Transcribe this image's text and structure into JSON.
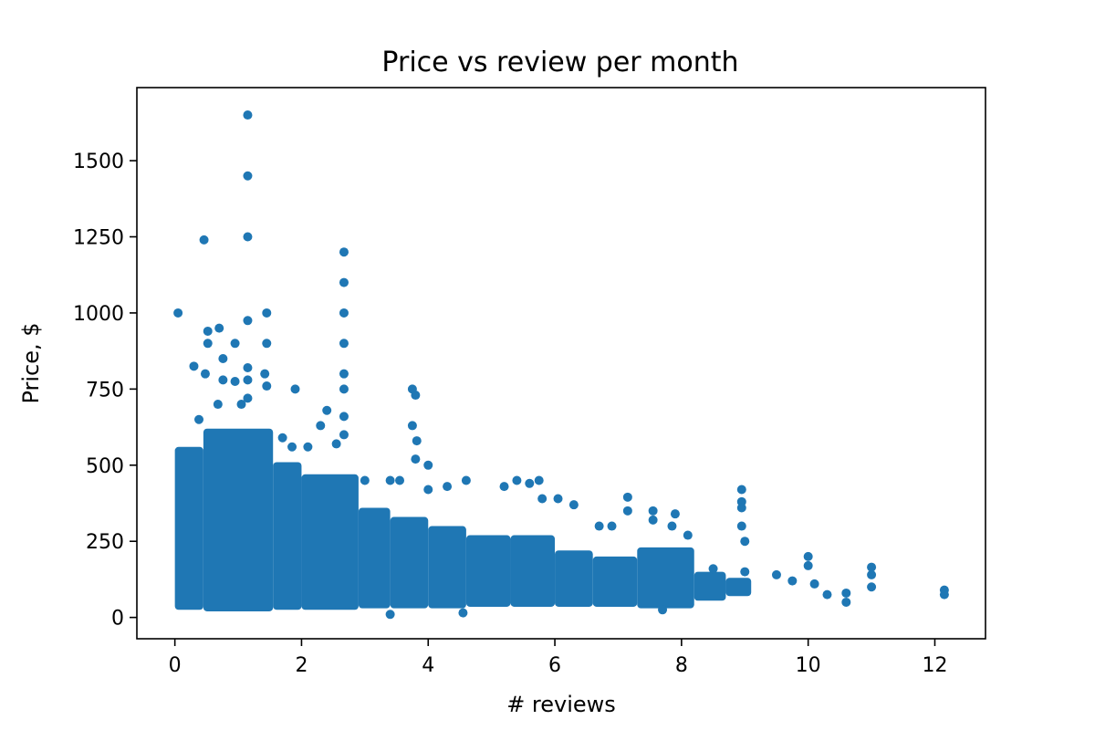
{
  "chart_data": {
    "type": "scatter",
    "title": "Price vs review per month",
    "xlabel": "# reviews",
    "ylabel": "Price, $",
    "xlim": [
      -0.6,
      12.8
    ],
    "ylim": [
      -70,
      1740
    ],
    "xticks": [
      0,
      2,
      4,
      6,
      8,
      10,
      12
    ],
    "yticks": [
      0,
      250,
      500,
      750,
      1000,
      1250,
      1500
    ],
    "grid": false,
    "legend": "none",
    "marker_color": "#1f77b4",
    "series": [
      {
        "points": [
          [
            0.05,
            1000
          ],
          [
            0.3,
            825
          ],
          [
            0.38,
            650
          ],
          [
            0.52,
            940
          ],
          [
            0.52,
            900
          ],
          [
            0.48,
            800
          ],
          [
            0.46,
            1240
          ],
          [
            0.7,
            950
          ],
          [
            0.68,
            700
          ],
          [
            0.76,
            850
          ],
          [
            0.76,
            780
          ],
          [
            0.95,
            900
          ],
          [
            0.95,
            775
          ],
          [
            1.05,
            700
          ],
          [
            1.15,
            1650
          ],
          [
            1.15,
            1450
          ],
          [
            1.15,
            1250
          ],
          [
            1.15,
            975
          ],
          [
            1.15,
            820
          ],
          [
            1.15,
            780
          ],
          [
            1.15,
            720
          ],
          [
            1.42,
            800
          ],
          [
            1.45,
            1000
          ],
          [
            1.45,
            900
          ],
          [
            1.45,
            760
          ],
          [
            1.9,
            750
          ],
          [
            1.7,
            590
          ],
          [
            1.85,
            560
          ],
          [
            2.1,
            560
          ],
          [
            2.3,
            630
          ],
          [
            2.4,
            680
          ],
          [
            2.55,
            570
          ],
          [
            2.67,
            1200
          ],
          [
            2.67,
            1100
          ],
          [
            2.67,
            1000
          ],
          [
            2.67,
            900
          ],
          [
            2.67,
            800
          ],
          [
            2.67,
            750
          ],
          [
            2.67,
            660
          ],
          [
            2.67,
            600
          ],
          [
            3.0,
            450
          ],
          [
            3.4,
            450
          ],
          [
            3.55,
            450
          ],
          [
            3.75,
            750
          ],
          [
            3.8,
            730
          ],
          [
            3.75,
            630
          ],
          [
            3.82,
            580
          ],
          [
            3.8,
            520
          ],
          [
            4.0,
            500
          ],
          [
            4.0,
            420
          ],
          [
            4.3,
            430
          ],
          [
            4.6,
            450
          ],
          [
            5.2,
            430
          ],
          [
            5.4,
            450
          ],
          [
            5.6,
            440
          ],
          [
            5.75,
            450
          ],
          [
            5.8,
            390
          ],
          [
            6.05,
            390
          ],
          [
            6.3,
            370
          ],
          [
            6.7,
            300
          ],
          [
            6.9,
            300
          ],
          [
            7.15,
            395
          ],
          [
            7.15,
            350
          ],
          [
            7.55,
            350
          ],
          [
            7.55,
            320
          ],
          [
            7.85,
            300
          ],
          [
            7.9,
            340
          ],
          [
            8.1,
            270
          ],
          [
            8.5,
            160
          ],
          [
            8.95,
            420
          ],
          [
            8.95,
            380
          ],
          [
            8.95,
            360
          ],
          [
            8.95,
            300
          ],
          [
            9.0,
            250
          ],
          [
            9.0,
            150
          ],
          [
            9.5,
            140
          ],
          [
            9.75,
            120
          ],
          [
            10.0,
            200
          ],
          [
            10.0,
            170
          ],
          [
            10.1,
            110
          ],
          [
            10.3,
            75
          ],
          [
            10.6,
            80
          ],
          [
            10.6,
            50
          ],
          [
            11.0,
            165
          ],
          [
            11.0,
            140
          ],
          [
            11.0,
            100
          ],
          [
            12.15,
            90
          ],
          [
            12.15,
            75
          ],
          [
            7.7,
            25
          ],
          [
            3.4,
            10
          ],
          [
            4.55,
            15
          ]
        ]
      }
    ],
    "density_bands": [
      [
        0.0,
        0.45,
        25,
        560
      ],
      [
        0.45,
        1.55,
        20,
        620
      ],
      [
        1.55,
        2.0,
        25,
        510
      ],
      [
        2.0,
        2.9,
        25,
        470
      ],
      [
        2.9,
        3.4,
        30,
        360
      ],
      [
        3.4,
        4.0,
        30,
        330
      ],
      [
        4.0,
        4.6,
        30,
        300
      ],
      [
        4.6,
        5.3,
        35,
        270
      ],
      [
        5.3,
        6.0,
        35,
        270
      ],
      [
        6.0,
        6.6,
        35,
        220
      ],
      [
        6.6,
        7.3,
        35,
        200
      ],
      [
        7.3,
        8.2,
        30,
        230
      ],
      [
        8.2,
        8.7,
        55,
        150
      ],
      [
        8.7,
        9.1,
        70,
        130
      ]
    ]
  }
}
